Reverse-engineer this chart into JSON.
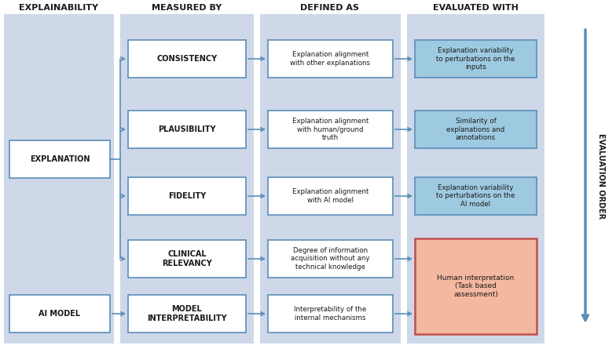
{
  "fig_width": 7.84,
  "fig_height": 4.45,
  "dpi": 100,
  "bg_color": "#ffffff",
  "col_bg_color": "#cfd8e8",
  "box_border_color": "#5b8db8",
  "box_fill_white": "#ffffff",
  "box_fill_teal": "#9ecae1",
  "box_fill_salmon": "#f4b8a0",
  "arrow_color": "#5b8db8",
  "text_color": "#1a1a1a",
  "header_color": "#1a1a1a",
  "col1_header": "EXPLAINABILITY",
  "col2_header": "MEASURED BY",
  "col3_header": "DEFINED AS",
  "col4_header": "EVALUATED WITH",
  "side_label": "EVALUATION ORDER",
  "mid_boxes": [
    "CONSISTENCY",
    "PLAUSIBILITY",
    "FIDELITY",
    "CLINICAL\nRELEVANCY",
    "MODEL\nINTERPRETABILITY"
  ],
  "defined_boxes": [
    "Explanation alignment\nwith other explanations",
    "Explanation alignment\nwith human/ground\ntruth",
    "Explanation alignment\nwith AI model",
    "Degree of information\nacquisition without any\ntechnical knowledge",
    "Interpretability of the\ninternal mechanisms"
  ],
  "eval_boxes_teal": [
    "Explanation variability\nto perturbations on the\ninputs",
    "Similarity of\nexplanations and\nannotations",
    "Explanation variability\nto perturbations on the\nAI model"
  ],
  "eval_box_salmon": "Human interpretation\n(Task based\nassessment)"
}
